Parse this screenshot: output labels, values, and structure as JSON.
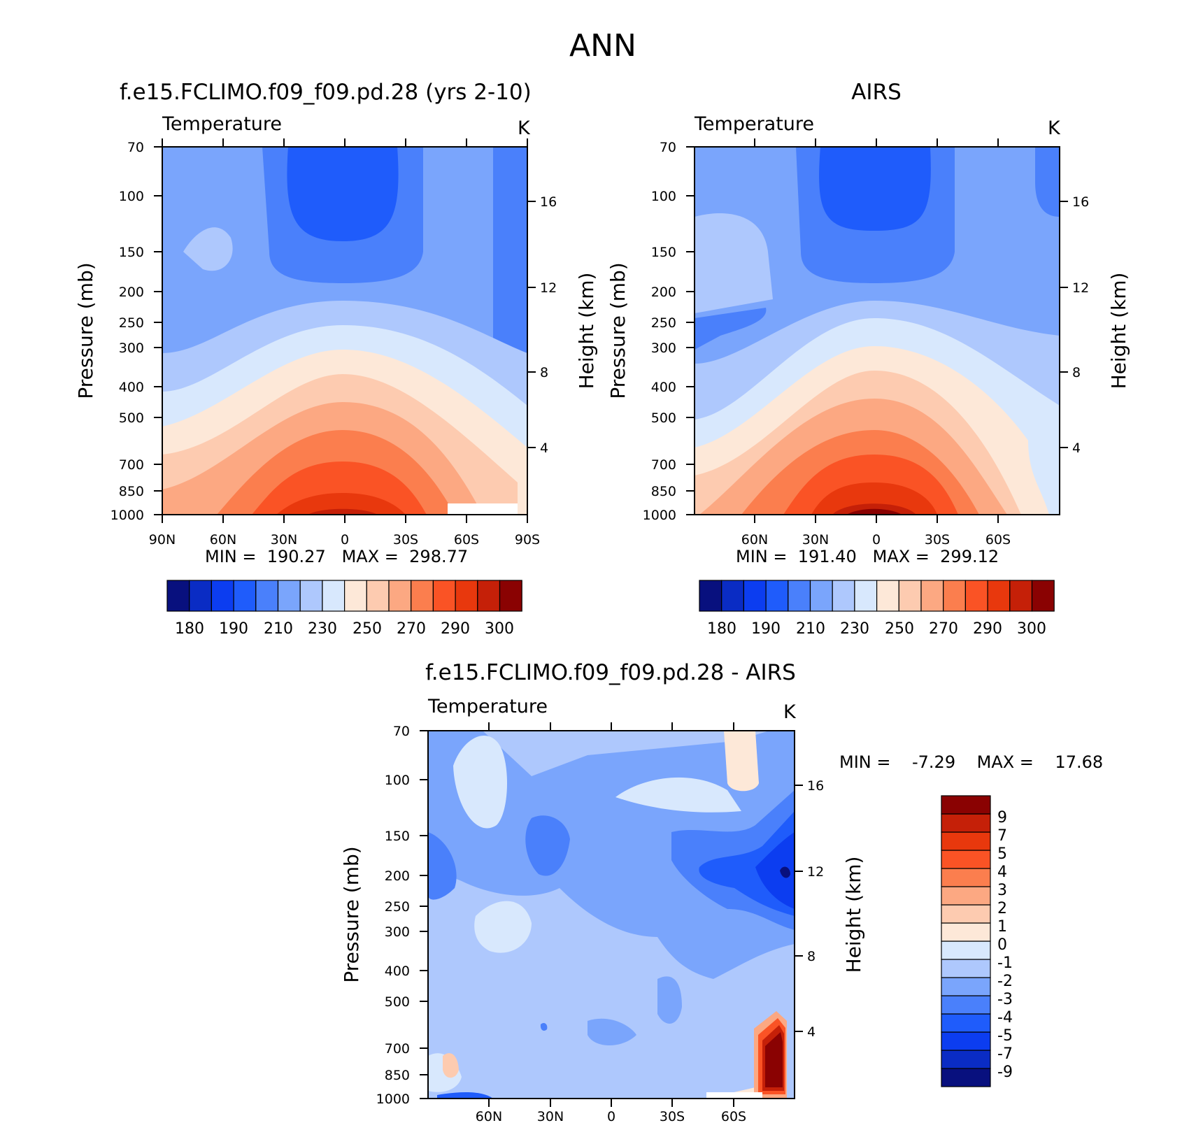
{
  "main_title": "ANN",
  "colors": {
    "abs": [
      "#08107e",
      "#0a2cc4",
      "#0c3df0",
      "#1f5cfb",
      "#4a80fb",
      "#7aa5fc",
      "#aec8fd",
      "#d8e8fd",
      "#fde8d8",
      "#fdcbb0",
      "#fca882",
      "#fb7e4e",
      "#fa5325",
      "#e8380d",
      "#c52008",
      "#8a0202"
    ],
    "diff": [
      "#08107e",
      "#0a2cc4",
      "#0c3df0",
      "#1f5cfb",
      "#4a80fb",
      "#7aa5fc",
      "#aec8fd",
      "#d8e8fd",
      "#fde8d8",
      "#fdcbb0",
      "#fca882",
      "#fb7e4e",
      "#fa5325",
      "#e8380d",
      "#c52008",
      "#8a0202"
    ]
  },
  "panels": [
    {
      "id": "model",
      "title": "f.e15.FCLIMO.f09_f09.pd.28 (yrs 2-10)",
      "var_label": "Temperature",
      "units": "K",
      "ylabel": "Pressure (mb)",
      "ylabel_right": "Height (km)",
      "min_max": "MIN =  190.27   MAX =  298.77",
      "x_ticks": [
        "90N",
        "60N",
        "30N",
        "0",
        "30S",
        "60S",
        "90S"
      ],
      "y_ticks": [
        "70",
        "100",
        "150",
        "200",
        "250",
        "300",
        "400",
        "500",
        "700",
        "850",
        "1000"
      ],
      "y_ticks_right": [
        "16",
        "12",
        "8",
        "4"
      ],
      "colorbar_labels": [
        "180",
        "190",
        "210",
        "230",
        "250",
        "270",
        "290",
        "300"
      ]
    },
    {
      "id": "obs",
      "title": "AIRS",
      "var_label": "Temperature",
      "units": "K",
      "ylabel": "Pressure (mb)",
      "ylabel_right": "Height (km)",
      "min_max": "MIN =  191.40   MAX =  299.12",
      "x_ticks": [
        "60N",
        "30N",
        "0",
        "30S",
        "60S"
      ],
      "y_ticks": [
        "70",
        "100",
        "150",
        "200",
        "250",
        "300",
        "400",
        "500",
        "700",
        "850",
        "1000"
      ],
      "y_ticks_right": [
        "16",
        "12",
        "8",
        "4"
      ],
      "colorbar_labels": [
        "180",
        "190",
        "210",
        "230",
        "250",
        "270",
        "290",
        "300"
      ]
    },
    {
      "id": "diff",
      "title": "f.e15.FCLIMO.f09_f09.pd.28 - AIRS",
      "var_label": "Temperature",
      "units": "K",
      "ylabel": "Pressure (mb)",
      "ylabel_right": "Height (km)",
      "min_max": "MIN =    -7.29    MAX =    17.68",
      "x_ticks": [
        "60N",
        "30N",
        "0",
        "30S",
        "60S"
      ],
      "y_ticks": [
        "70",
        "100",
        "150",
        "200",
        "250",
        "300",
        "400",
        "500",
        "700",
        "850",
        "1000"
      ],
      "y_ticks_right": [
        "16",
        "12",
        "8",
        "4"
      ],
      "colorbar_labels": [
        "9",
        "7",
        "5",
        "4",
        "3",
        "2",
        "1",
        "0",
        "-1",
        "-2",
        "-3",
        "-4",
        "-5",
        "-7",
        "-9"
      ]
    }
  ],
  "chart_data": [
    {
      "type": "heatmap",
      "title": "f.e15.FCLIMO.f09_f09.pd.28 (yrs 2-10)",
      "subtitle": "Temperature",
      "units": "K",
      "xlabel": "",
      "ylabel": "Pressure (mb)",
      "ylabel_right": "Height (km)",
      "x": [
        "90N",
        "60N",
        "30N",
        "0",
        "30S",
        "60S",
        "90S"
      ],
      "y": [
        70,
        100,
        150,
        200,
        250,
        300,
        400,
        500,
        700,
        850,
        1000
      ],
      "y_scale": "log",
      "y_inverted": true,
      "contour_levels": [
        180,
        190,
        200,
        210,
        220,
        230,
        240,
        250,
        260,
        270,
        280,
        290,
        295,
        300
      ],
      "values": [
        [
          210,
          215,
          200,
          195,
          200,
          215,
          225
        ],
        [
          212,
          218,
          200,
          192,
          200,
          215,
          222
        ],
        [
          215,
          222,
          205,
          198,
          205,
          215,
          220
        ],
        [
          215,
          218,
          212,
          210,
          212,
          215,
          220
        ],
        [
          218,
          220,
          222,
          225,
          222,
          220,
          222
        ],
        [
          218,
          222,
          230,
          235,
          230,
          222,
          220
        ],
        [
          230,
          235,
          245,
          250,
          245,
          235,
          228
        ],
        [
          240,
          245,
          255,
          262,
          255,
          245,
          235
        ],
        [
          250,
          260,
          275,
          282,
          275,
          262,
          245
        ],
        [
          258,
          268,
          282,
          288,
          282,
          270,
          250
        ],
        [
          262,
          275,
          290,
          298,
          290,
          275,
          250
        ]
      ],
      "min": 190.27,
      "max": 298.77
    },
    {
      "type": "heatmap",
      "title": "AIRS",
      "subtitle": "Temperature",
      "units": "K",
      "xlabel": "",
      "ylabel": "Pressure (mb)",
      "ylabel_right": "Height (km)",
      "x": [
        "60N",
        "30N",
        "0",
        "30S",
        "60S"
      ],
      "y": [
        70,
        100,
        150,
        200,
        250,
        300,
        400,
        500,
        700,
        850,
        1000
      ],
      "y_scale": "log",
      "y_inverted": true,
      "contour_levels": [
        180,
        190,
        200,
        210,
        220,
        230,
        240,
        250,
        260,
        270,
        280,
        290,
        295,
        300
      ],
      "values": [
        [
          215,
          200,
          194,
          200,
          215
        ],
        [
          220,
          200,
          191,
          200,
          215
        ],
        [
          222,
          205,
          198,
          205,
          215
        ],
        [
          220,
          212,
          210,
          212,
          215
        ],
        [
          222,
          222,
          225,
          222,
          220
        ],
        [
          225,
          232,
          236,
          230,
          222
        ],
        [
          238,
          246,
          250,
          245,
          232
        ],
        [
          248,
          256,
          262,
          255,
          240
        ],
        [
          260,
          276,
          283,
          275,
          248
        ],
        [
          268,
          283,
          290,
          282,
          252
        ],
        [
          272,
          290,
          299,
          290,
          255
        ]
      ],
      "min": 191.4,
      "max": 299.12
    },
    {
      "type": "heatmap",
      "title": "f.e15.FCLIMO.f09_f09.pd.28 - AIRS",
      "subtitle": "Temperature",
      "units": "K",
      "xlabel": "",
      "ylabel": "Pressure (mb)",
      "ylabel_right": "Height (km)",
      "x": [
        "60N",
        "30N",
        "0",
        "30S",
        "60S"
      ],
      "y": [
        70,
        100,
        150,
        200,
        250,
        300,
        400,
        500,
        700,
        850,
        1000
      ],
      "y_scale": "log",
      "y_inverted": true,
      "contour_levels": [
        -9,
        -7,
        -5,
        -4,
        -3,
        -2,
        -1,
        0,
        1,
        2,
        3,
        4,
        5,
        7,
        9
      ],
      "values": [
        [
          -1,
          -1,
          -3,
          -2,
          1
        ],
        [
          -1,
          -2,
          -2,
          -2,
          0
        ],
        [
          -2,
          -3,
          -3,
          -4,
          -5
        ],
        [
          -5,
          -2,
          -3,
          -5,
          -6
        ],
        [
          -2,
          -1,
          -2,
          -3,
          -4
        ],
        [
          -1,
          -1,
          -2,
          -3,
          -3
        ],
        [
          -2,
          -2,
          -2,
          -3,
          -2
        ],
        [
          -1,
          -2,
          -2,
          -2,
          -2
        ],
        [
          -2,
          -2,
          -3,
          -2,
          10
        ],
        [
          1,
          -2,
          -2,
          -2,
          12
        ],
        [
          -4,
          -1,
          -2,
          -1,
          4
        ]
      ],
      "min": -7.29,
      "max": 17.68
    }
  ]
}
